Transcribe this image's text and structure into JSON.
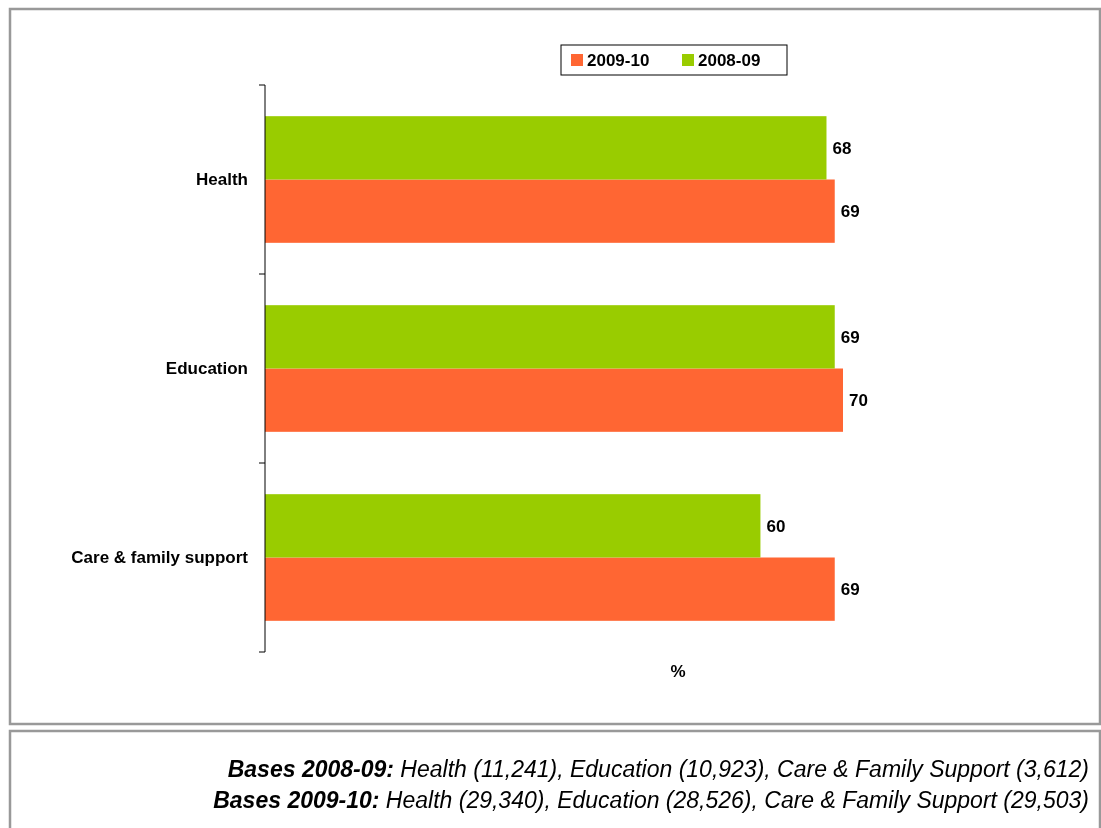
{
  "chart_data": {
    "type": "bar",
    "orientation": "horizontal",
    "xlabel": "%",
    "categories": [
      "Health",
      "Education",
      "Care & family support"
    ],
    "series": [
      {
        "name": "2009-10",
        "color": "#ff6633",
        "values": [
          69,
          70,
          69
        ]
      },
      {
        "name": "2008-09",
        "color": "#99cc00",
        "values": [
          68,
          69,
          60
        ]
      }
    ],
    "data_labels": true,
    "legend": "top",
    "tick_labels": "y",
    "annotations": [
      "Bases 2008-09: Health (11,241), Education (10,923), Care & Family Support (3,612)",
      "Bases 2009-10: Health (29,340), Education (28,526), Care & Family Support (29,503)"
    ]
  }
}
